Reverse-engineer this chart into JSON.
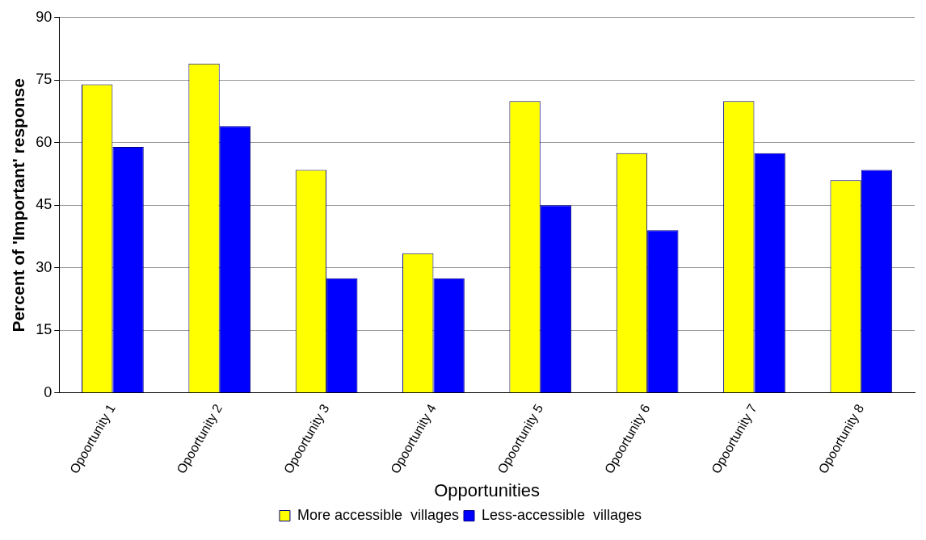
{
  "chart_data": {
    "type": "bar",
    "xlabel": "Opportunities",
    "ylabel": "Percent of 'Important' response",
    "categories": [
      "Opoortunity 1",
      "Opoortunity 2",
      "Opoortunity 3",
      "Opoortunity 4",
      "Opoortunity 5",
      "Opoortunity 6",
      "Opoortunity 7",
      "Opoortunity 8"
    ],
    "series": [
      {
        "name": "More accessible  villages",
        "color": "#ffff00",
        "values": [
          74,
          79,
          53.5,
          33.5,
          70,
          57.5,
          70,
          51
        ]
      },
      {
        "name": "Less-accessible  villages",
        "color": "#0000ff",
        "values": [
          59,
          64,
          27.5,
          27.5,
          45,
          39,
          57.5,
          53.5
        ]
      }
    ],
    "ylim": [
      0,
      90
    ],
    "yticks": [
      0,
      15,
      30,
      45,
      60,
      75,
      90
    ],
    "grid": "y",
    "legend": "bottom"
  }
}
